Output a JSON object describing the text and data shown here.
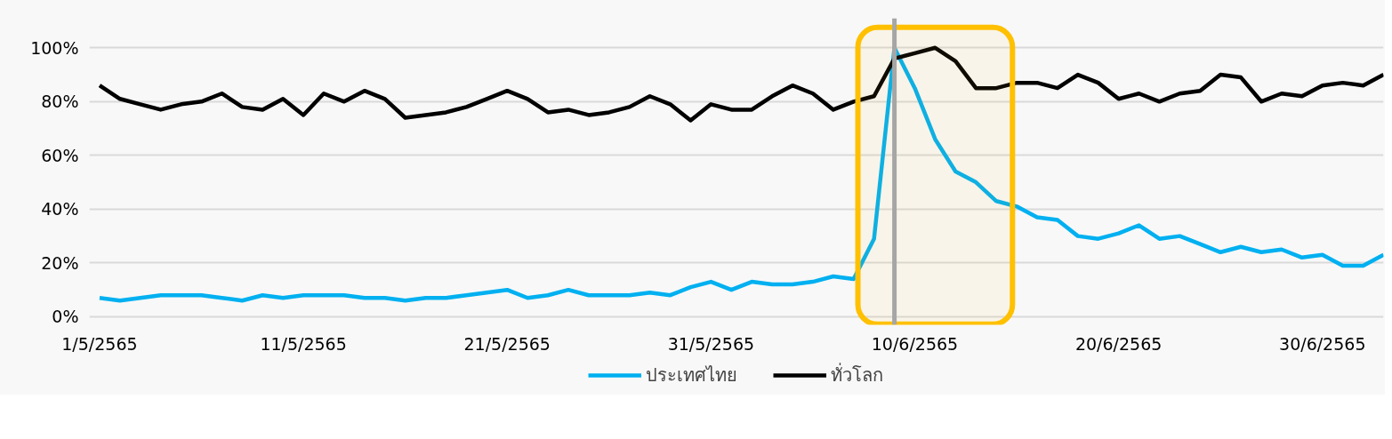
{
  "chart_data": {
    "type": "line",
    "x": [
      "2565-05-01",
      "2565-05-02",
      "2565-05-03",
      "2565-05-04",
      "2565-05-05",
      "2565-05-06",
      "2565-05-07",
      "2565-05-08",
      "2565-05-09",
      "2565-05-10",
      "2565-05-11",
      "2565-05-12",
      "2565-05-13",
      "2565-05-14",
      "2565-05-15",
      "2565-05-16",
      "2565-05-17",
      "2565-05-18",
      "2565-05-19",
      "2565-05-20",
      "2565-05-21",
      "2565-05-22",
      "2565-05-23",
      "2565-05-24",
      "2565-05-25",
      "2565-05-26",
      "2565-05-27",
      "2565-05-28",
      "2565-05-29",
      "2565-05-30",
      "2565-05-31",
      "2565-06-01",
      "2565-06-02",
      "2565-06-03",
      "2565-06-04",
      "2565-06-05",
      "2565-06-06",
      "2565-06-07",
      "2565-06-08",
      "2565-06-09",
      "2565-06-10",
      "2565-06-11",
      "2565-06-12",
      "2565-06-13",
      "2565-06-14",
      "2565-06-15",
      "2565-06-16",
      "2565-06-17",
      "2565-06-18",
      "2565-06-19",
      "2565-06-20",
      "2565-06-21",
      "2565-06-22",
      "2565-06-23",
      "2565-06-24",
      "2565-06-25",
      "2565-06-26",
      "2565-06-27",
      "2565-06-28",
      "2565-06-29",
      "2565-06-30",
      "2565-07-01",
      "2565-07-02",
      "2565-07-03"
    ],
    "series": [
      {
        "name": "ประเทศไทย",
        "color": "#00b0f0",
        "values": [
          7,
          6,
          7,
          8,
          8,
          8,
          7,
          6,
          8,
          7,
          8,
          8,
          8,
          7,
          7,
          6,
          7,
          7,
          8,
          9,
          10,
          7,
          8,
          10,
          8,
          8,
          8,
          9,
          8,
          11,
          13,
          10,
          13,
          12,
          12,
          13,
          15,
          14,
          29,
          100,
          85,
          66,
          54,
          50,
          43,
          41,
          37,
          36,
          30,
          29,
          31,
          34,
          29,
          30,
          27,
          24,
          26,
          24,
          25,
          22,
          23,
          19,
          19,
          23
        ]
      },
      {
        "name": "ทั่วโลก",
        "color": "#000000",
        "values": [
          86,
          81,
          79,
          77,
          79,
          80,
          83,
          78,
          77,
          81,
          75,
          83,
          80,
          84,
          81,
          74,
          75,
          76,
          78,
          81,
          84,
          81,
          76,
          77,
          75,
          76,
          78,
          82,
          79,
          73,
          79,
          77,
          77,
          82,
          86,
          83,
          77,
          80,
          82,
          96,
          98,
          100,
          95,
          85,
          85,
          87,
          87,
          85,
          90,
          87,
          81,
          83,
          80,
          83,
          84,
          90,
          89,
          80,
          83,
          82,
          86,
          87,
          86,
          90
        ]
      }
    ],
    "xlim": [
      "2565-04-30T12:00",
      "2565-07-03"
    ],
    "xticks": [
      {
        "value": "2565-05-01",
        "label": "1/5/2565"
      },
      {
        "value": "2565-05-11",
        "label": "11/5/2565"
      },
      {
        "value": "2565-05-21",
        "label": "21/5/2565"
      },
      {
        "value": "2565-05-31",
        "label": "31/5/2565"
      },
      {
        "value": "2565-06-10",
        "label": "10/6/2565"
      },
      {
        "value": "2565-06-20",
        "label": "20/6/2565"
      },
      {
        "value": "2565-06-30",
        "label": "30/6/2565"
      }
    ],
    "ylim": [
      -3,
      111
    ],
    "yticks": [
      {
        "value": 0,
        "label": "0%"
      },
      {
        "value": 20,
        "label": "20%"
      },
      {
        "value": 40,
        "label": "40%"
      },
      {
        "value": 60,
        "label": "60%"
      },
      {
        "value": 80,
        "label": "80%"
      },
      {
        "value": 100,
        "label": "100%"
      }
    ],
    "ref_lines": [
      {
        "axis": "x",
        "value": "2565-06-09",
        "label": null,
        "color": "#a6a6a6"
      }
    ],
    "bands": [
      {
        "axis": "x",
        "from": "2565-06-07T05:00",
        "to": "2565-06-14T19:00",
        "label": null,
        "color": "#ffc000"
      }
    ],
    "grid": "y",
    "legend": "bottom",
    "marker": "none",
    "line_style": "solid"
  }
}
